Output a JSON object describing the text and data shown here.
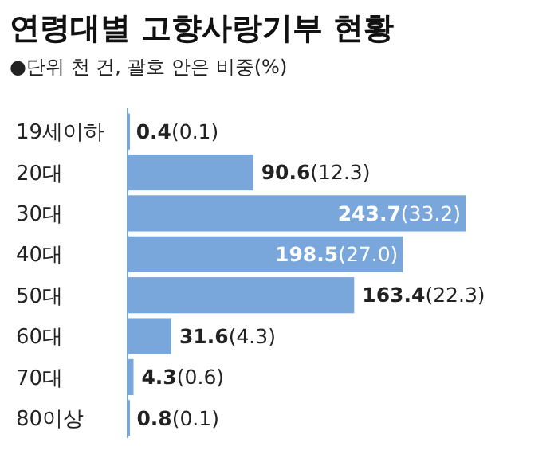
{
  "chart_data": {
    "type": "bar",
    "orientation": "horizontal",
    "title": "연령대별 고향사랑기부 현황",
    "subtitle": "●단위 천 건, 괄호 안은 비중(%)",
    "categories": [
      "19세이하",
      "20대",
      "30대",
      "40대",
      "50대",
      "60대",
      "70대",
      "80이상"
    ],
    "values": [
      0.4,
      90.6,
      243.7,
      198.5,
      163.4,
      31.6,
      4.3,
      0.8
    ],
    "value_labels": [
      "0.4(0.1)",
      "90.6(12.3)",
      "243.7(33.2)",
      "198.5(27.0)",
      "163.4(22.3)",
      "31.6(4.3)",
      "4.3(0.6)",
      "0.8(0.1)"
    ],
    "color": "#79a7dc"
  }
}
